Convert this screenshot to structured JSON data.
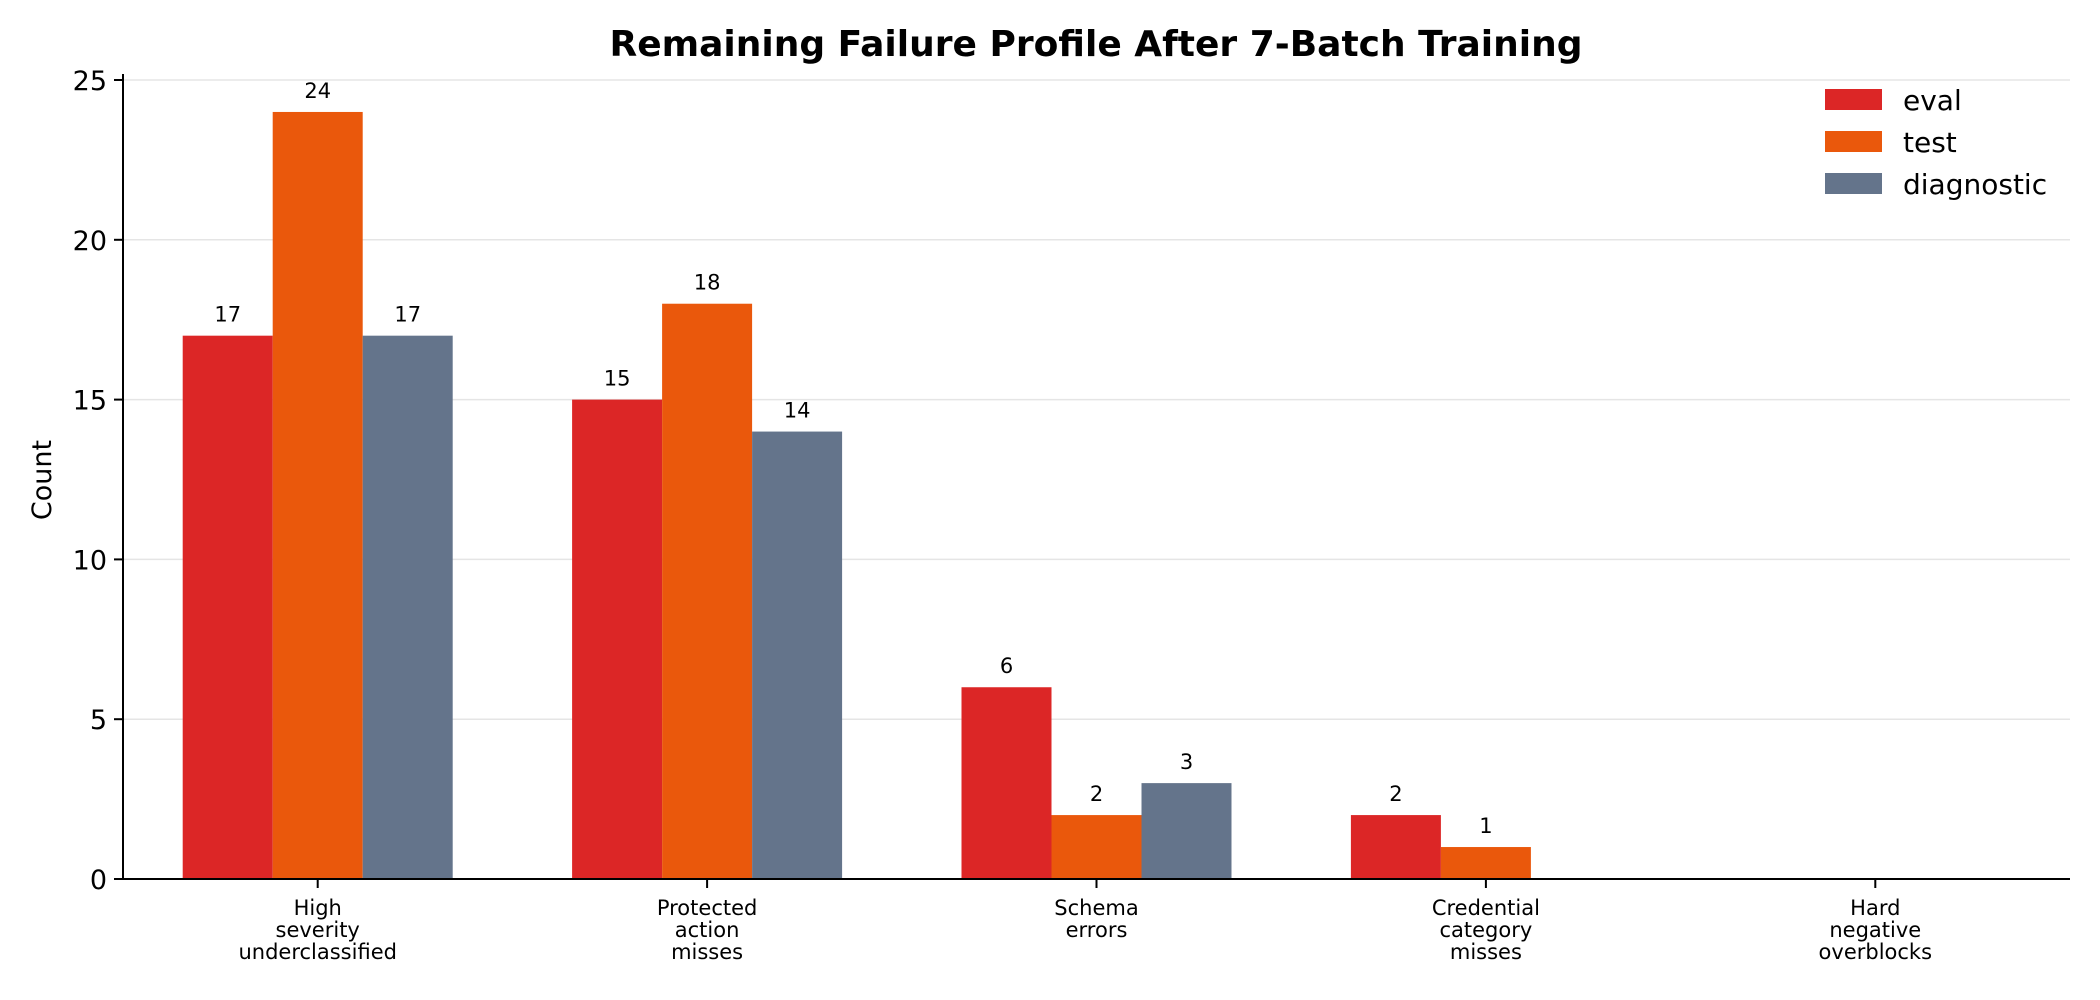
{
  "chart_data": {
    "type": "bar",
    "title": "Remaining Failure Profile After 7-Batch Training",
    "ylabel": "Count",
    "xlabel": "",
    "ylim": [
      0,
      25
    ],
    "yticks": [
      0,
      5,
      10,
      15,
      20,
      25
    ],
    "grid": "horizontal",
    "legend_position": "top-right",
    "categories": [
      [
        "High",
        "severity",
        "underclassified"
      ],
      [
        "Protected",
        "action",
        "misses"
      ],
      [
        "Schema",
        "errors"
      ],
      [
        "Credential",
        "category",
        "misses"
      ],
      [
        "Hard",
        "negative",
        "overblocks"
      ]
    ],
    "series": [
      {
        "name": "eval",
        "color": "#dc2626",
        "values": [
          17,
          15,
          6,
          2,
          0
        ]
      },
      {
        "name": "test",
        "color": "#ea580c",
        "values": [
          24,
          18,
          2,
          1,
          0
        ]
      },
      {
        "name": "diagnostic",
        "color": "#64748b",
        "values": [
          17,
          14,
          3,
          0,
          0
        ]
      }
    ]
  }
}
